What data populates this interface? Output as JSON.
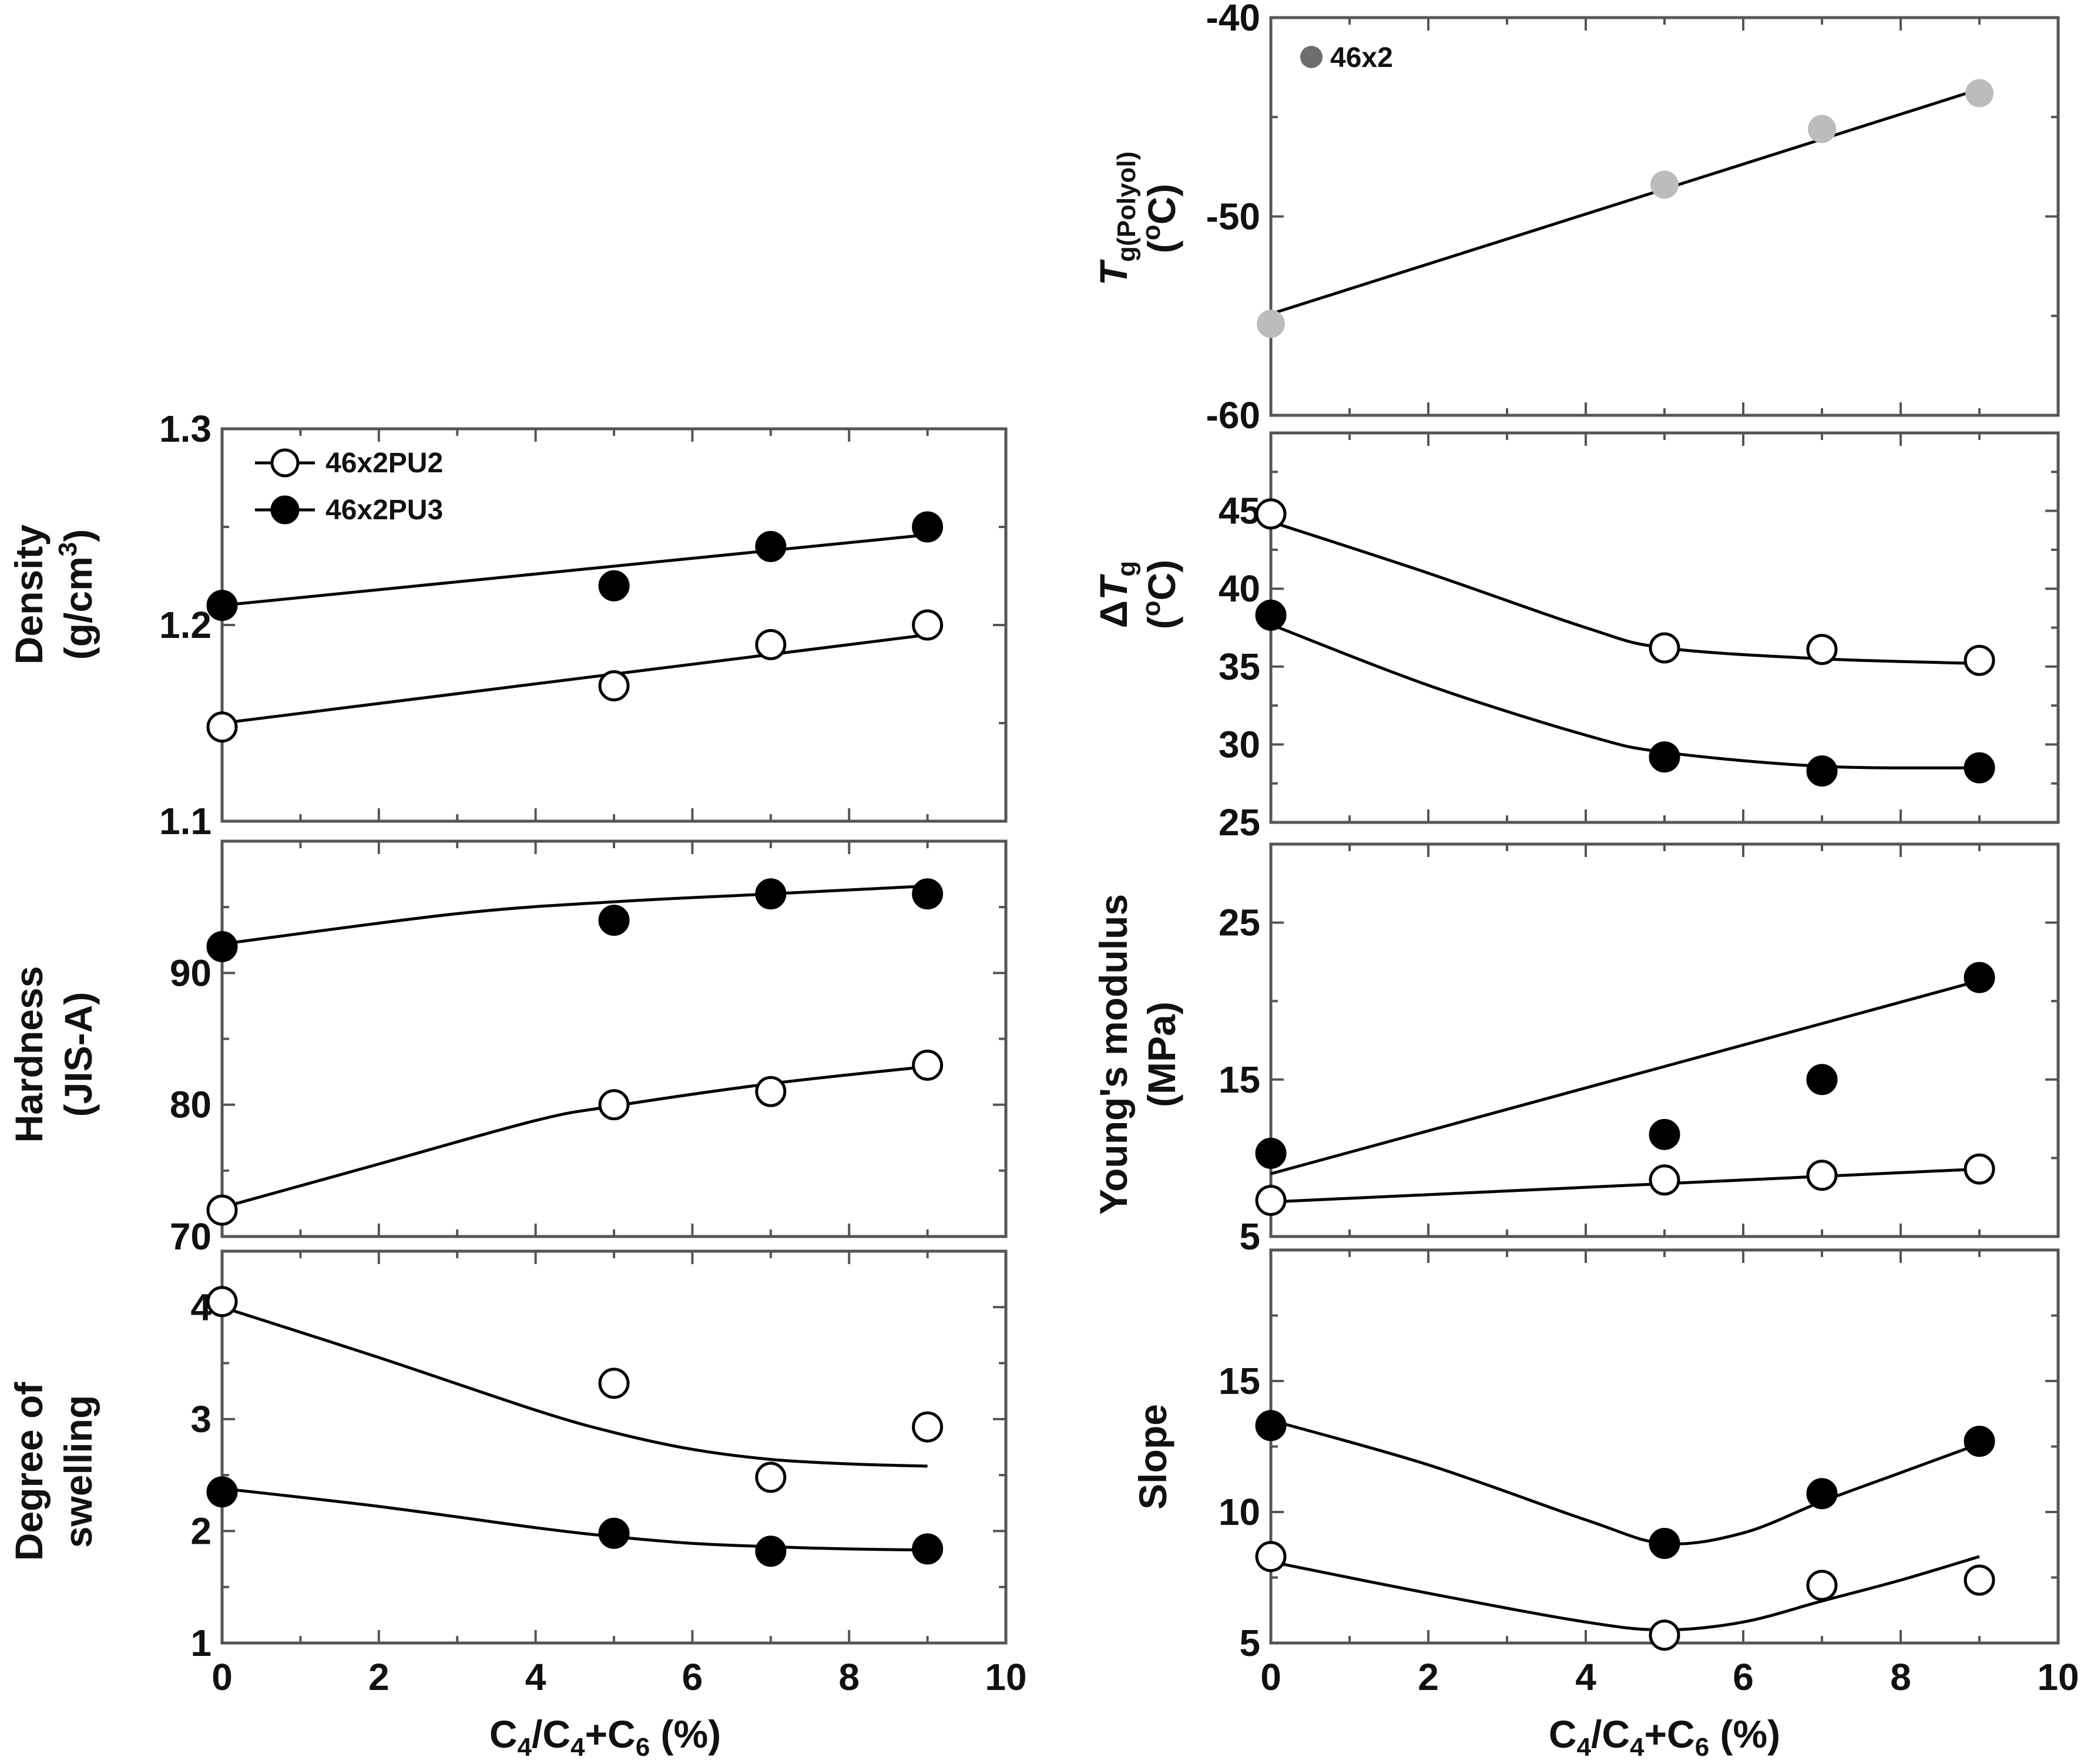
{
  "figure": {
    "xlabel_left": "C₄/C₄+C₆ (%)",
    "xlabel_right": "C₄/C₄+C₆ (%)"
  },
  "legend_pu": [
    {
      "label": "46x2PU2",
      "marker": "open"
    },
    {
      "label": "46x2PU3",
      "marker": "filled"
    }
  ],
  "legend_polyol": {
    "label": "46x2",
    "marker": "gray"
  },
  "colors": {
    "filled": "#000000",
    "open": "#ffffff",
    "gray": "#bcbcbc",
    "gray_legend": "#6e6e6e",
    "line": "#000000"
  },
  "chart_data": [
    {
      "id": "density",
      "type": "scatter",
      "ylabel_lines": [
        "Density",
        "(g/cm³)"
      ],
      "xlim": [
        0,
        10
      ],
      "ylim": [
        1.1,
        1.3
      ],
      "yticks": [
        "1.1",
        "1.2",
        "1.3"
      ],
      "xticks": [],
      "series": [
        {
          "name": "46x2PU2",
          "marker": "open",
          "x": [
            0,
            5,
            7,
            9
          ],
          "y": [
            1.148,
            1.169,
            1.19,
            1.2
          ],
          "fit_x": [
            0,
            9
          ],
          "fit_y": [
            1.15,
            1.195
          ]
        },
        {
          "name": "46x2PU3",
          "marker": "filled",
          "x": [
            0,
            5,
            7,
            9
          ],
          "y": [
            1.21,
            1.22,
            1.24,
            1.25
          ],
          "fit_x": [
            0,
            9
          ],
          "fit_y": [
            1.21,
            1.246
          ]
        }
      ]
    },
    {
      "id": "hardness",
      "type": "scatter",
      "ylabel_lines": [
        "Hardness",
        "(JIS-A)"
      ],
      "xlim": [
        0,
        10
      ],
      "ylim": [
        70,
        100
      ],
      "yticks": [
        "70",
        "80",
        "90"
      ],
      "xticks": [],
      "series": [
        {
          "name": "46x2PU2",
          "marker": "open",
          "x": [
            0,
            5,
            7,
            9
          ],
          "y": [
            72,
            80,
            81,
            83
          ],
          "fit_x": [
            0,
            2,
            4,
            5,
            7,
            9
          ],
          "fit_y": [
            72.2,
            75.5,
            78.8,
            79.9,
            81.6,
            82.9
          ]
        },
        {
          "name": "46x2PU3",
          "marker": "filled",
          "x": [
            0,
            5,
            7,
            9
          ],
          "y": [
            92,
            94,
            96,
            96
          ],
          "fit_x": [
            0,
            3,
            5,
            7,
            9
          ],
          "fit_y": [
            92.2,
            94.5,
            95.4,
            96.0,
            96.6
          ]
        }
      ]
    },
    {
      "id": "swelling",
      "type": "scatter",
      "ylabel_lines": [
        "Degree of",
        "swelling"
      ],
      "xlim": [
        0,
        10
      ],
      "ylim": [
        1,
        4.5
      ],
      "yticks": [
        "1",
        "2",
        "3",
        "4"
      ],
      "xticks": [
        "0",
        "2",
        "4",
        "6",
        "8",
        "10"
      ],
      "series": [
        {
          "name": "46x2PU2",
          "marker": "open",
          "x": [
            0,
            5,
            7,
            9
          ],
          "y": [
            4.05,
            3.32,
            2.48,
            2.93
          ],
          "fit_x": [
            0,
            2,
            4,
            5,
            6,
            7,
            8,
            9
          ],
          "fit_y": [
            4.0,
            3.55,
            3.08,
            2.88,
            2.73,
            2.64,
            2.6,
            2.58
          ]
        },
        {
          "name": "46x2PU3",
          "marker": "filled",
          "x": [
            0,
            5,
            7,
            9
          ],
          "y": [
            2.35,
            1.98,
            1.82,
            1.84
          ],
          "fit_x": [
            0,
            2,
            4,
            5,
            6,
            7,
            8,
            9
          ],
          "fit_y": [
            2.38,
            2.22,
            2.03,
            1.95,
            1.89,
            1.86,
            1.84,
            1.83
          ]
        }
      ]
    },
    {
      "id": "tg_polyol",
      "type": "scatter",
      "ylabel_lines": [
        "Tg(Polyol)",
        "(ºC)"
      ],
      "xlim": [
        0,
        10
      ],
      "ylim": [
        -60,
        -40
      ],
      "yticks": [
        "-60",
        "-50",
        "-40"
      ],
      "xticks": [],
      "series": [
        {
          "name": "46x2",
          "marker": "gray",
          "x": [
            0,
            5,
            7,
            9
          ],
          "y": [
            -55.4,
            -48.4,
            -45.6,
            -43.8
          ],
          "fit_x": [
            0,
            9
          ],
          "fit_y": [
            -54.9,
            -43.6
          ]
        }
      ]
    },
    {
      "id": "delta_tg",
      "type": "scatter",
      "ylabel_lines": [
        "ΔTg",
        "(ºC)"
      ],
      "xlim": [
        0,
        10
      ],
      "ylim": [
        25,
        50
      ],
      "yticks": [
        "25",
        "30",
        "35",
        "40",
        "45"
      ],
      "xticks": [],
      "series": [
        {
          "name": "46x2PU2",
          "marker": "open",
          "x": [
            0,
            5,
            7,
            9
          ],
          "y": [
            44.8,
            36.2,
            36.1,
            35.4
          ],
          "fit_x": [
            0,
            2,
            4,
            5,
            7,
            9
          ],
          "fit_y": [
            44.3,
            41.0,
            37.5,
            36.2,
            35.5,
            35.2
          ]
        },
        {
          "name": "46x2PU3",
          "marker": "filled",
          "x": [
            0,
            5,
            7,
            9
          ],
          "y": [
            38.3,
            29.2,
            28.3,
            28.5
          ],
          "fit_x": [
            0,
            2,
            4,
            5,
            7,
            9
          ],
          "fit_y": [
            37.7,
            33.8,
            30.6,
            29.5,
            28.6,
            28.5
          ]
        }
      ]
    },
    {
      "id": "youngs_modulus",
      "type": "scatter",
      "ylabel_lines": [
        "Young's modulus",
        "(MPa)"
      ],
      "xlim": [
        0,
        10
      ],
      "ylim": [
        5,
        30
      ],
      "yticks": [
        "5",
        "15",
        "25"
      ],
      "xticks": [],
      "series": [
        {
          "name": "46x2PU2",
          "marker": "open",
          "x": [
            0,
            5,
            7,
            9
          ],
          "y": [
            7.3,
            8.6,
            8.9,
            9.3
          ],
          "fit_x": [
            0,
            9
          ],
          "fit_y": [
            7.2,
            9.3
          ]
        },
        {
          "name": "46x2PU3",
          "marker": "filled",
          "x": [
            0,
            5,
            7,
            9
          ],
          "y": [
            10.3,
            11.5,
            15.0,
            21.5
          ],
          "fit_x": [
            0,
            9
          ],
          "fit_y": [
            9.0,
            21.3
          ]
        }
      ]
    },
    {
      "id": "slope",
      "type": "scatter",
      "ylabel_lines": [
        "Slope"
      ],
      "xlim": [
        0,
        10
      ],
      "ylim": [
        5,
        20
      ],
      "yticks": [
        "5",
        "10",
        "15"
      ],
      "xticks": [
        "0",
        "2",
        "4",
        "6",
        "8",
        "10"
      ],
      "series": [
        {
          "name": "46x2PU2",
          "marker": "open",
          "x": [
            0,
            5,
            7,
            9
          ],
          "y": [
            8.3,
            5.3,
            7.2,
            7.4
          ],
          "fit_x": [
            0,
            2,
            4,
            5,
            6,
            7,
            8,
            9
          ],
          "fit_y": [
            8.1,
            6.9,
            5.8,
            5.5,
            5.8,
            6.6,
            7.4,
            8.3
          ]
        },
        {
          "name": "46x2PU3",
          "marker": "filled",
          "x": [
            0,
            5,
            7,
            9
          ],
          "y": [
            13.3,
            8.8,
            10.7,
            12.7
          ],
          "fit_x": [
            0,
            2,
            4,
            5,
            6,
            7,
            8,
            9
          ],
          "fit_y": [
            13.5,
            11.8,
            9.7,
            8.8,
            9.2,
            10.4,
            11.5,
            12.6
          ]
        }
      ]
    }
  ]
}
